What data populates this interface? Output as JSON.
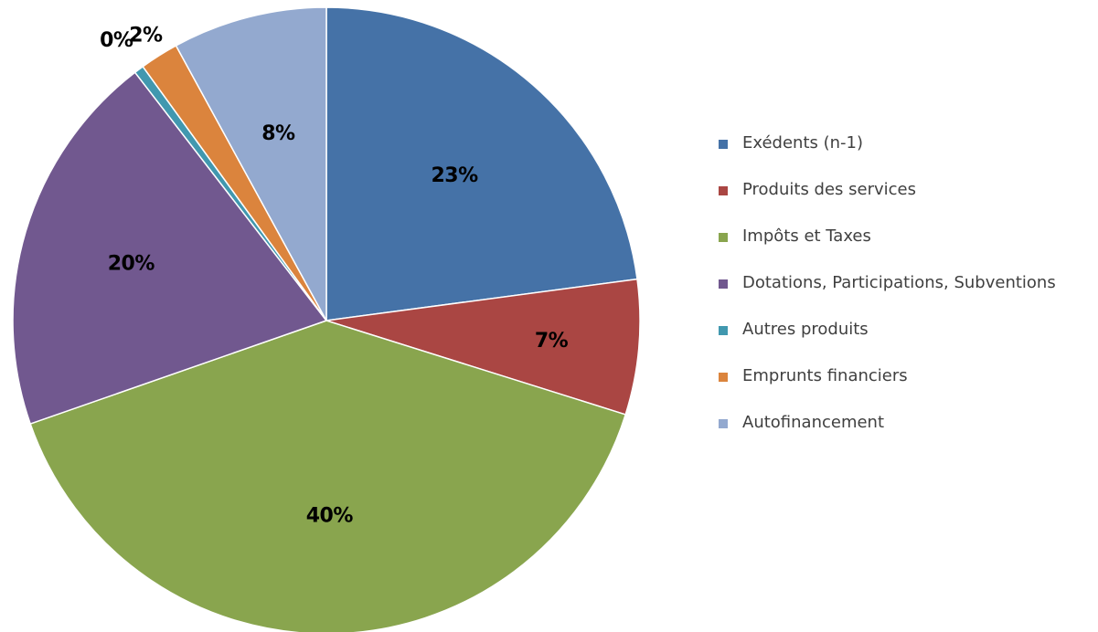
{
  "chart_data": {
    "type": "pie",
    "title": "",
    "data_labels_unit": "%",
    "legend_position": "right",
    "slices": [
      {
        "label": "Exédents (n-1)",
        "value": 23,
        "display": "23%",
        "color": "#4572A7"
      },
      {
        "label": "Produits des services",
        "value": 7,
        "display": "7%",
        "color": "#AA4643"
      },
      {
        "label": "Impôts et Taxes",
        "value": 40,
        "display": "40%",
        "color": "#89A54E"
      },
      {
        "label": "Dotations, Participations, Subventions",
        "value": 20,
        "display": "20%",
        "color": "#71588F"
      },
      {
        "label": "Autres produits",
        "value": 0.5,
        "display": "0%",
        "color": "#4198AF"
      },
      {
        "label": "Emprunts financiers",
        "value": 2,
        "display": "2%",
        "color": "#DB843D"
      },
      {
        "label": "Autofinancement",
        "value": 8,
        "display": "8%",
        "color": "#93A9CF"
      }
    ]
  }
}
